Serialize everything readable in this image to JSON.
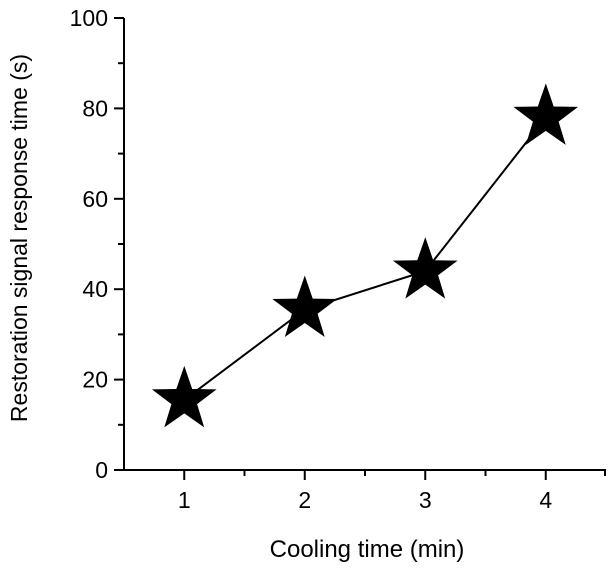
{
  "chart_data": {
    "type": "line",
    "title": "",
    "xlabel": "Cooling time (min)",
    "ylabel": "Restoration signal response time (s)",
    "x": [
      1,
      2,
      3,
      4
    ],
    "series": [
      {
        "values": [
          15.5,
          35.5,
          44,
          78
        ],
        "marker": "star",
        "color": "#000000"
      }
    ],
    "xlim": [
      0.5,
      4.5
    ],
    "ylim": [
      0,
      100
    ],
    "x_ticks": [
      1,
      2,
      3,
      4
    ],
    "x_tick_labels": [
      "1",
      "2",
      "3",
      "4"
    ],
    "y_ticks": [
      0,
      20,
      40,
      60,
      80,
      100
    ],
    "y_tick_labels": [
      "0",
      "20",
      "40",
      "60",
      "80",
      "100"
    ],
    "grid": false,
    "legend": "none"
  }
}
